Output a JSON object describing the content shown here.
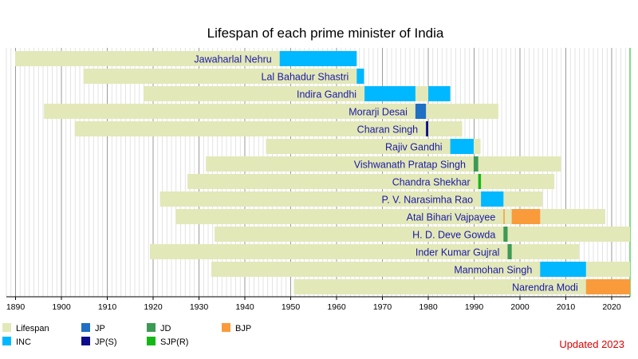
{
  "chart_data": {
    "type": "bar",
    "subtype": "timeline-gantt",
    "title": "Lifespan of each prime minister of India",
    "xlim": [
      1888,
      2024
    ],
    "x_ticks": [
      1890,
      1900,
      1910,
      1920,
      1930,
      1940,
      1950,
      1960,
      1970,
      1980,
      1990,
      2000,
      2010,
      2020
    ],
    "grid": "vertical yearly",
    "legend_position": "bottom",
    "colors": {
      "Lifespan": "#e3e8b8",
      "INC": "#00b8ff",
      "JP": "#1f6fc4",
      "JP(S)": "#0c0c8c",
      "JD": "#3d9a55",
      "SJP(R)": "#14b814",
      "BJP": "#f99b3b"
    },
    "legend": [
      "Lifespan",
      "INC",
      "JP",
      "JP(S)",
      "JD",
      "SJP(R)",
      "BJP"
    ],
    "people": [
      {
        "name": "Jawaharlal Nehru",
        "birth": 1889.9,
        "death": 1964.4,
        "terms": [
          {
            "party": "INC",
            "start": 1947.6,
            "end": 1964.4
          }
        ]
      },
      {
        "name": "Lal Bahadur Shastri",
        "birth": 1904.8,
        "death": 1966.0,
        "terms": [
          {
            "party": "INC",
            "start": 1964.4,
            "end": 1966.0
          }
        ]
      },
      {
        "name": "Indira Gandhi",
        "birth": 1917.9,
        "death": 1984.8,
        "terms": [
          {
            "party": "INC",
            "start": 1966.1,
            "end": 1977.2
          },
          {
            "party": "INC",
            "start": 1980.0,
            "end": 1984.8
          }
        ]
      },
      {
        "name": "Morarji Desai",
        "birth": 1896.2,
        "death": 1995.3,
        "terms": [
          {
            "party": "JP",
            "start": 1977.2,
            "end": 1979.5
          }
        ]
      },
      {
        "name": "Charan Singh",
        "birth": 1902.9,
        "death": 1987.4,
        "terms": [
          {
            "party": "JP(S)",
            "start": 1979.5,
            "end": 1980.0
          }
        ]
      },
      {
        "name": "Rajiv Gandhi",
        "birth": 1944.6,
        "death": 1991.4,
        "terms": [
          {
            "party": "INC",
            "start": 1984.8,
            "end": 1989.9
          }
        ]
      },
      {
        "name": "Vishwanath Pratap Singh",
        "birth": 1931.5,
        "death": 2008.9,
        "terms": [
          {
            "party": "JD",
            "start": 1989.9,
            "end": 1990.9
          }
        ]
      },
      {
        "name": "Chandra Shekhar",
        "birth": 1927.5,
        "death": 2007.5,
        "terms": [
          {
            "party": "SJP(R)",
            "start": 1990.9,
            "end": 1991.5
          }
        ]
      },
      {
        "name": "P. V. Narasimha Rao",
        "birth": 1921.5,
        "death": 2004.9,
        "terms": [
          {
            "party": "INC",
            "start": 1991.5,
            "end": 1996.4
          }
        ]
      },
      {
        "name": "Atal Bihari Vajpayee",
        "birth": 1924.9,
        "death": 2018.6,
        "terms": [
          {
            "party": "BJP",
            "start": 1996.4,
            "end": 1996.5
          },
          {
            "party": "BJP",
            "start": 1998.2,
            "end": 2004.4
          }
        ]
      },
      {
        "name": "H. D. Deve Gowda",
        "birth": 1933.4,
        "death": 2024,
        "terms": [
          {
            "party": "JD",
            "start": 1996.4,
            "end": 1997.3
          }
        ]
      },
      {
        "name": "Inder Kumar Gujral",
        "birth": 1919.3,
        "death": 2012.9,
        "terms": [
          {
            "party": "JD",
            "start": 1997.3,
            "end": 1998.2
          }
        ]
      },
      {
        "name": "Manmohan Singh",
        "birth": 1932.7,
        "death": 2024,
        "terms": [
          {
            "party": "INC",
            "start": 2004.4,
            "end": 2014.4
          }
        ]
      },
      {
        "name": "Narendra Modi",
        "birth": 1950.7,
        "death": 2024,
        "terms": [
          {
            "party": "BJP",
            "start": 2014.4,
            "end": 2024
          }
        ]
      }
    ],
    "annotation": "Updated 2023",
    "annotation_color": "#dd0000"
  }
}
